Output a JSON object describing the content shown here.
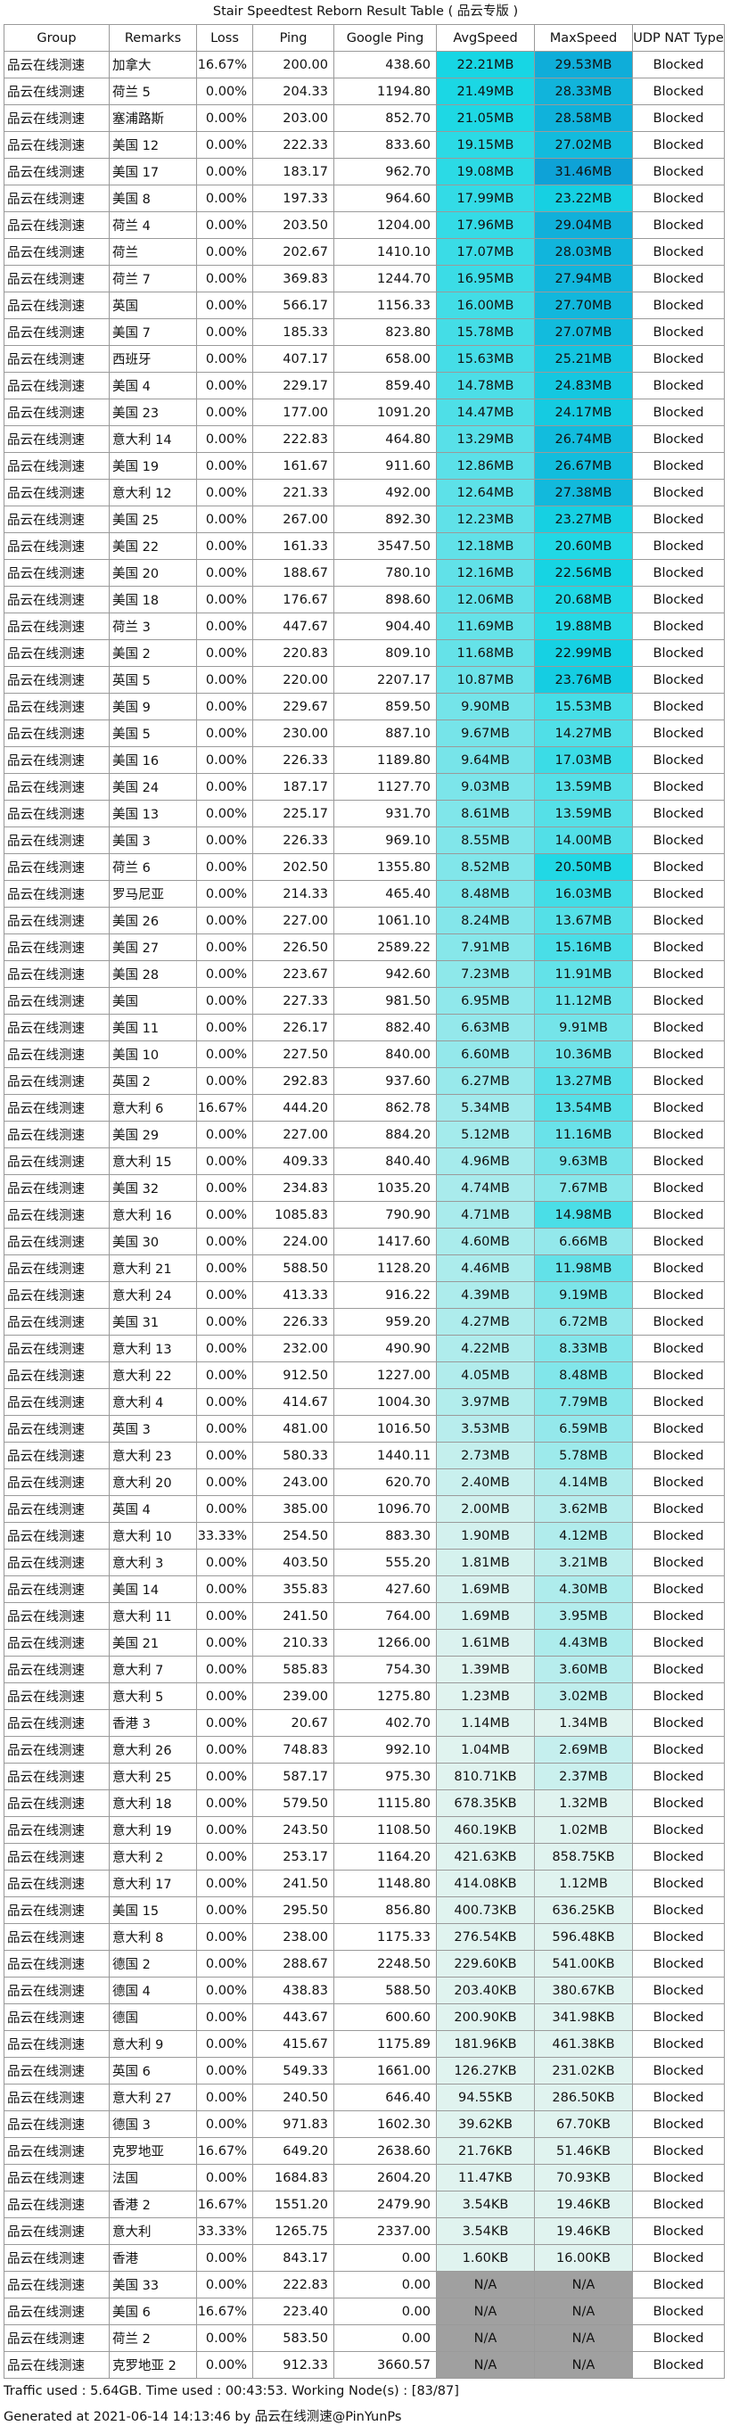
{
  "title": "Stair Speedtest Reborn Result Table ( 品云专版 )",
  "headers": [
    "Group",
    "Remarks",
    "Loss",
    "Ping",
    "Google Ping",
    "AvgSpeed",
    "MaxSpeed",
    "UDP NAT Type"
  ],
  "rows": [
    [
      "品云在线测速",
      "加拿大",
      "16.67%",
      "200.00",
      "438.60",
      "22.21MB",
      "29.53MB",
      "Blocked"
    ],
    [
      "品云在线测速",
      "荷兰 5",
      "0.00%",
      "204.33",
      "1194.80",
      "21.49MB",
      "28.33MB",
      "Blocked"
    ],
    [
      "品云在线测速",
      "塞浦路斯",
      "0.00%",
      "203.00",
      "852.70",
      "21.05MB",
      "28.58MB",
      "Blocked"
    ],
    [
      "品云在线测速",
      "美国 12",
      "0.00%",
      "222.33",
      "833.60",
      "19.15MB",
      "27.02MB",
      "Blocked"
    ],
    [
      "品云在线测速",
      "美国 17",
      "0.00%",
      "183.17",
      "962.70",
      "19.08MB",
      "31.46MB",
      "Blocked"
    ],
    [
      "品云在线测速",
      "美国 8",
      "0.00%",
      "197.33",
      "964.60",
      "17.99MB",
      "23.22MB",
      "Blocked"
    ],
    [
      "品云在线测速",
      "荷兰 4",
      "0.00%",
      "203.50",
      "1204.00",
      "17.96MB",
      "29.04MB",
      "Blocked"
    ],
    [
      "品云在线测速",
      "荷兰",
      "0.00%",
      "202.67",
      "1410.10",
      "17.07MB",
      "28.03MB",
      "Blocked"
    ],
    [
      "品云在线测速",
      "荷兰 7",
      "0.00%",
      "369.83",
      "1244.70",
      "16.95MB",
      "27.94MB",
      "Blocked"
    ],
    [
      "品云在线测速",
      "英国",
      "0.00%",
      "566.17",
      "1156.33",
      "16.00MB",
      "27.70MB",
      "Blocked"
    ],
    [
      "品云在线测速",
      "美国 7",
      "0.00%",
      "185.33",
      "823.80",
      "15.78MB",
      "27.07MB",
      "Blocked"
    ],
    [
      "品云在线测速",
      "西班牙",
      "0.00%",
      "407.17",
      "658.00",
      "15.63MB",
      "25.21MB",
      "Blocked"
    ],
    [
      "品云在线测速",
      "美国 4",
      "0.00%",
      "229.17",
      "859.40",
      "14.78MB",
      "24.83MB",
      "Blocked"
    ],
    [
      "品云在线测速",
      "美国 23",
      "0.00%",
      "177.00",
      "1091.20",
      "14.47MB",
      "24.17MB",
      "Blocked"
    ],
    [
      "品云在线测速",
      "意大利 14",
      "0.00%",
      "222.83",
      "464.80",
      "13.29MB",
      "26.74MB",
      "Blocked"
    ],
    [
      "品云在线测速",
      "美国 19",
      "0.00%",
      "161.67",
      "911.60",
      "12.86MB",
      "26.67MB",
      "Blocked"
    ],
    [
      "品云在线测速",
      "意大利 12",
      "0.00%",
      "221.33",
      "492.00",
      "12.64MB",
      "27.38MB",
      "Blocked"
    ],
    [
      "品云在线测速",
      "美国 25",
      "0.00%",
      "267.00",
      "892.30",
      "12.23MB",
      "23.27MB",
      "Blocked"
    ],
    [
      "品云在线测速",
      "美国 22",
      "0.00%",
      "161.33",
      "3547.50",
      "12.18MB",
      "20.60MB",
      "Blocked"
    ],
    [
      "品云在线测速",
      "美国 20",
      "0.00%",
      "188.67",
      "780.10",
      "12.16MB",
      "22.56MB",
      "Blocked"
    ],
    [
      "品云在线测速",
      "美国 18",
      "0.00%",
      "176.67",
      "898.60",
      "12.06MB",
      "20.68MB",
      "Blocked"
    ],
    [
      "品云在线测速",
      "荷兰 3",
      "0.00%",
      "447.67",
      "904.40",
      "11.69MB",
      "19.88MB",
      "Blocked"
    ],
    [
      "品云在线测速",
      "美国 2",
      "0.00%",
      "220.83",
      "809.10",
      "11.68MB",
      "22.99MB",
      "Blocked"
    ],
    [
      "品云在线测速",
      "英国 5",
      "0.00%",
      "220.00",
      "2207.17",
      "10.87MB",
      "23.76MB",
      "Blocked"
    ],
    [
      "品云在线测速",
      "美国 9",
      "0.00%",
      "229.67",
      "859.50",
      "9.90MB",
      "15.53MB",
      "Blocked"
    ],
    [
      "品云在线测速",
      "美国 5",
      "0.00%",
      "230.00",
      "887.10",
      "9.67MB",
      "14.27MB",
      "Blocked"
    ],
    [
      "品云在线测速",
      "美国 16",
      "0.00%",
      "226.33",
      "1189.80",
      "9.64MB",
      "17.03MB",
      "Blocked"
    ],
    [
      "品云在线测速",
      "美国 24",
      "0.00%",
      "187.17",
      "1127.70",
      "9.03MB",
      "13.59MB",
      "Blocked"
    ],
    [
      "品云在线测速",
      "美国 13",
      "0.00%",
      "225.17",
      "931.70",
      "8.61MB",
      "13.59MB",
      "Blocked"
    ],
    [
      "品云在线测速",
      "美国 3",
      "0.00%",
      "226.33",
      "969.10",
      "8.55MB",
      "14.00MB",
      "Blocked"
    ],
    [
      "品云在线测速",
      "荷兰 6",
      "0.00%",
      "202.50",
      "1355.80",
      "8.52MB",
      "20.50MB",
      "Blocked"
    ],
    [
      "品云在线测速",
      "罗马尼亚",
      "0.00%",
      "214.33",
      "465.40",
      "8.48MB",
      "16.03MB",
      "Blocked"
    ],
    [
      "品云在线测速",
      "美国 26",
      "0.00%",
      "227.00",
      "1061.10",
      "8.24MB",
      "13.67MB",
      "Blocked"
    ],
    [
      "品云在线测速",
      "美国 27",
      "0.00%",
      "226.50",
      "2589.22",
      "7.91MB",
      "15.16MB",
      "Blocked"
    ],
    [
      "品云在线测速",
      "美国 28",
      "0.00%",
      "223.67",
      "942.60",
      "7.23MB",
      "11.91MB",
      "Blocked"
    ],
    [
      "品云在线测速",
      "美国",
      "0.00%",
      "227.33",
      "981.50",
      "6.95MB",
      "11.12MB",
      "Blocked"
    ],
    [
      "品云在线测速",
      "美国 11",
      "0.00%",
      "226.17",
      "882.40",
      "6.63MB",
      "9.91MB",
      "Blocked"
    ],
    [
      "品云在线测速",
      "美国 10",
      "0.00%",
      "227.50",
      "840.00",
      "6.60MB",
      "10.36MB",
      "Blocked"
    ],
    [
      "品云在线测速",
      "英国 2",
      "0.00%",
      "292.83",
      "937.60",
      "6.27MB",
      "13.27MB",
      "Blocked"
    ],
    [
      "品云在线测速",
      "意大利 6",
      "16.67%",
      "444.20",
      "862.78",
      "5.34MB",
      "13.54MB",
      "Blocked"
    ],
    [
      "品云在线测速",
      "美国 29",
      "0.00%",
      "227.00",
      "884.20",
      "5.12MB",
      "11.16MB",
      "Blocked"
    ],
    [
      "品云在线测速",
      "意大利 15",
      "0.00%",
      "409.33",
      "840.40",
      "4.96MB",
      "9.63MB",
      "Blocked"
    ],
    [
      "品云在线测速",
      "美国 32",
      "0.00%",
      "234.83",
      "1035.20",
      "4.74MB",
      "7.67MB",
      "Blocked"
    ],
    [
      "品云在线测速",
      "意大利 16",
      "0.00%",
      "1085.83",
      "790.90",
      "4.71MB",
      "14.98MB",
      "Blocked"
    ],
    [
      "品云在线测速",
      "美国 30",
      "0.00%",
      "224.00",
      "1417.60",
      "4.60MB",
      "6.66MB",
      "Blocked"
    ],
    [
      "品云在线测速",
      "意大利 21",
      "0.00%",
      "588.50",
      "1128.20",
      "4.46MB",
      "11.98MB",
      "Blocked"
    ],
    [
      "品云在线测速",
      "意大利 24",
      "0.00%",
      "413.33",
      "916.22",
      "4.39MB",
      "9.19MB",
      "Blocked"
    ],
    [
      "品云在线测速",
      "美国 31",
      "0.00%",
      "226.33",
      "959.20",
      "4.27MB",
      "6.72MB",
      "Blocked"
    ],
    [
      "品云在线测速",
      "意大利 13",
      "0.00%",
      "232.00",
      "490.90",
      "4.22MB",
      "8.33MB",
      "Blocked"
    ],
    [
      "品云在线测速",
      "意大利 22",
      "0.00%",
      "912.50",
      "1227.00",
      "4.05MB",
      "8.48MB",
      "Blocked"
    ],
    [
      "品云在线测速",
      "意大利 4",
      "0.00%",
      "414.67",
      "1004.30",
      "3.97MB",
      "7.79MB",
      "Blocked"
    ],
    [
      "品云在线测速",
      "英国 3",
      "0.00%",
      "481.00",
      "1016.50",
      "3.53MB",
      "6.59MB",
      "Blocked"
    ],
    [
      "品云在线测速",
      "意大利 23",
      "0.00%",
      "580.33",
      "1440.11",
      "2.73MB",
      "5.78MB",
      "Blocked"
    ],
    [
      "品云在线测速",
      "意大利 20",
      "0.00%",
      "243.00",
      "620.70",
      "2.40MB",
      "4.14MB",
      "Blocked"
    ],
    [
      "品云在线测速",
      "英国 4",
      "0.00%",
      "385.00",
      "1096.70",
      "2.00MB",
      "3.62MB",
      "Blocked"
    ],
    [
      "品云在线测速",
      "意大利 10",
      "33.33%",
      "254.50",
      "883.30",
      "1.90MB",
      "4.12MB",
      "Blocked"
    ],
    [
      "品云在线测速",
      "意大利 3",
      "0.00%",
      "403.50",
      "555.20",
      "1.81MB",
      "3.21MB",
      "Blocked"
    ],
    [
      "品云在线测速",
      "美国 14",
      "0.00%",
      "355.83",
      "427.60",
      "1.69MB",
      "4.30MB",
      "Blocked"
    ],
    [
      "品云在线测速",
      "意大利 11",
      "0.00%",
      "241.50",
      "764.00",
      "1.69MB",
      "3.95MB",
      "Blocked"
    ],
    [
      "品云在线测速",
      "美国 21",
      "0.00%",
      "210.33",
      "1266.00",
      "1.61MB",
      "4.43MB",
      "Blocked"
    ],
    [
      "品云在线测速",
      "意大利 7",
      "0.00%",
      "585.83",
      "754.30",
      "1.39MB",
      "3.60MB",
      "Blocked"
    ],
    [
      "品云在线测速",
      "意大利 5",
      "0.00%",
      "239.00",
      "1275.80",
      "1.23MB",
      "3.02MB",
      "Blocked"
    ],
    [
      "品云在线测速",
      "香港 3",
      "0.00%",
      "20.67",
      "402.70",
      "1.14MB",
      "1.34MB",
      "Blocked"
    ],
    [
      "品云在线测速",
      "意大利 26",
      "0.00%",
      "748.83",
      "992.10",
      "1.04MB",
      "2.69MB",
      "Blocked"
    ],
    [
      "品云在线测速",
      "意大利 25",
      "0.00%",
      "587.17",
      "975.30",
      "810.71KB",
      "2.37MB",
      "Blocked"
    ],
    [
      "品云在线测速",
      "意大利 18",
      "0.00%",
      "579.50",
      "1115.80",
      "678.35KB",
      "1.32MB",
      "Blocked"
    ],
    [
      "品云在线测速",
      "意大利 19",
      "0.00%",
      "243.50",
      "1108.50",
      "460.19KB",
      "1.02MB",
      "Blocked"
    ],
    [
      "品云在线测速",
      "意大利 2",
      "0.00%",
      "253.17",
      "1164.20",
      "421.63KB",
      "858.75KB",
      "Blocked"
    ],
    [
      "品云在线测速",
      "意大利 17",
      "0.00%",
      "241.50",
      "1148.80",
      "414.08KB",
      "1.12MB",
      "Blocked"
    ],
    [
      "品云在线测速",
      "美国 15",
      "0.00%",
      "295.50",
      "856.80",
      "400.73KB",
      "636.25KB",
      "Blocked"
    ],
    [
      "品云在线测速",
      "意大利 8",
      "0.00%",
      "238.00",
      "1175.33",
      "276.54KB",
      "596.48KB",
      "Blocked"
    ],
    [
      "品云在线测速",
      "德国 2",
      "0.00%",
      "288.67",
      "2248.50",
      "229.60KB",
      "541.00KB",
      "Blocked"
    ],
    [
      "品云在线测速",
      "德国 4",
      "0.00%",
      "438.83",
      "588.50",
      "203.40KB",
      "380.67KB",
      "Blocked"
    ],
    [
      "品云在线测速",
      "德国",
      "0.00%",
      "443.67",
      "600.60",
      "200.90KB",
      "341.98KB",
      "Blocked"
    ],
    [
      "品云在线测速",
      "意大利 9",
      "0.00%",
      "415.67",
      "1175.89",
      "181.96KB",
      "461.38KB",
      "Blocked"
    ],
    [
      "品云在线测速",
      "英国 6",
      "0.00%",
      "549.33",
      "1661.00",
      "126.27KB",
      "231.02KB",
      "Blocked"
    ],
    [
      "品云在线测速",
      "意大利 27",
      "0.00%",
      "240.50",
      "646.40",
      "94.55KB",
      "286.50KB",
      "Blocked"
    ],
    [
      "品云在线测速",
      "德国 3",
      "0.00%",
      "971.83",
      "1602.30",
      "39.62KB",
      "67.70KB",
      "Blocked"
    ],
    [
      "品云在线测速",
      "克罗地亚",
      "16.67%",
      "649.20",
      "2638.60",
      "21.76KB",
      "51.46KB",
      "Blocked"
    ],
    [
      "品云在线测速",
      "法国",
      "0.00%",
      "1684.83",
      "2604.20",
      "11.47KB",
      "70.93KB",
      "Blocked"
    ],
    [
      "品云在线测速",
      "香港 2",
      "16.67%",
      "1551.20",
      "2479.90",
      "3.54KB",
      "19.46KB",
      "Blocked"
    ],
    [
      "品云在线测速",
      "意大利",
      "33.33%",
      "1265.75",
      "2337.00",
      "3.54KB",
      "19.46KB",
      "Blocked"
    ],
    [
      "品云在线测速",
      "香港",
      "0.00%",
      "843.17",
      "0.00",
      "1.60KB",
      "16.00KB",
      "Blocked"
    ],
    [
      "品云在线测速",
      "美国 33",
      "0.00%",
      "222.83",
      "0.00",
      "N/A",
      "N/A",
      "Blocked"
    ],
    [
      "品云在线测速",
      "美国 6",
      "16.67%",
      "223.40",
      "0.00",
      "N/A",
      "N/A",
      "Blocked"
    ],
    [
      "品云在线测速",
      "荷兰 2",
      "0.00%",
      "583.50",
      "0.00",
      "N/A",
      "N/A",
      "Blocked"
    ],
    [
      "品云在线测速",
      "克罗地亚 2",
      "0.00%",
      "912.33",
      "3660.57",
      "N/A",
      "N/A",
      "Blocked"
    ]
  ],
  "footer": {
    "traffic": "Traffic used : 5.64GB. Time used : 00:43:53. Working Node(s) : [83/87]",
    "generated": "Generated at 2021-06-14 14:13:46 by 品云在线测速@PinYunPs"
  },
  "colors": {
    "speed_light": "#e0f3ef",
    "speed_cyan": "#17d7e4",
    "max_dark_blue": "#0d9fd6",
    "na_gray": "#a0a0a0",
    "grid": "#9a9a9a"
  },
  "chart_data": {
    "type": "table",
    "title": "Stair Speedtest Reborn Result Table ( 品云专版 )",
    "columns": [
      "Group",
      "Remarks",
      "Loss",
      "Ping",
      "Google Ping",
      "AvgSpeed",
      "MaxSpeed",
      "UDP NAT Type"
    ],
    "avg_speed_mb": [
      22.21,
      21.49,
      21.05,
      19.15,
      19.08,
      17.99,
      17.96,
      17.07,
      16.95,
      16.0,
      15.78,
      15.63,
      14.78,
      14.47,
      13.29,
      12.86,
      12.64,
      12.23,
      12.18,
      12.16,
      12.06,
      11.69,
      11.68,
      10.87,
      9.9,
      9.67,
      9.64,
      9.03,
      8.61,
      8.55,
      8.52,
      8.48,
      8.24,
      7.91,
      7.23,
      6.95,
      6.63,
      6.6,
      6.27,
      5.34,
      5.12,
      4.96,
      4.74,
      4.71,
      4.6,
      4.46,
      4.39,
      4.27,
      4.22,
      4.05,
      3.97,
      3.53,
      2.73,
      2.4,
      2.0,
      1.9,
      1.81,
      1.69,
      1.69,
      1.61,
      1.39,
      1.23,
      1.14,
      1.04,
      0.79,
      0.66,
      0.45,
      0.41,
      0.4,
      0.39,
      0.27,
      0.22,
      0.2,
      0.2,
      0.18,
      0.12,
      0.09,
      0.04,
      0.02,
      0.01,
      0.003,
      0.003,
      0.002,
      null,
      null,
      null,
      null
    ],
    "max_speed_mb": [
      29.53,
      28.33,
      28.58,
      27.02,
      31.46,
      23.22,
      29.04,
      28.03,
      27.94,
      27.7,
      27.07,
      25.21,
      24.83,
      24.17,
      26.74,
      26.67,
      27.38,
      23.27,
      20.6,
      22.56,
      20.68,
      19.88,
      22.99,
      23.76,
      15.53,
      14.27,
      17.03,
      13.59,
      13.59,
      14.0,
      20.5,
      16.03,
      13.67,
      15.16,
      11.91,
      11.12,
      9.91,
      10.36,
      13.27,
      13.54,
      11.16,
      9.63,
      7.67,
      14.98,
      6.66,
      11.98,
      9.19,
      6.72,
      8.33,
      8.48,
      7.79,
      6.59,
      5.78,
      4.14,
      3.62,
      4.12,
      3.21,
      4.3,
      3.95,
      4.43,
      3.6,
      3.02,
      1.34,
      2.69,
      2.37,
      1.32,
      1.02,
      0.84,
      1.12,
      0.62,
      0.58,
      0.53,
      0.37,
      0.33,
      0.45,
      0.23,
      0.28,
      0.07,
      0.05,
      0.07,
      0.02,
      0.02,
      0.02,
      null,
      null,
      null,
      null
    ]
  }
}
